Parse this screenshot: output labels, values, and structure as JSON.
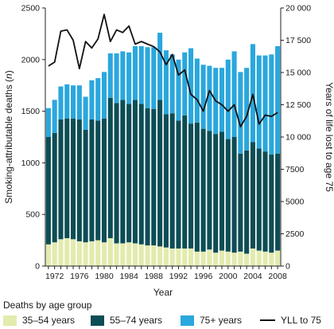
{
  "chart_data": {
    "type": "bar",
    "stacked": true,
    "xlabel": "Year",
    "ylabel": "Smoking-attributable deaths (n)",
    "ylabel_parts": [
      "Smoking-attributable deaths (",
      "n",
      ")"
    ],
    "y2label": "Years of life lost to age 75",
    "ylim": [
      0,
      2500
    ],
    "y2lim": [
      0,
      20000
    ],
    "yticks": [
      0,
      500,
      1000,
      1500,
      2000,
      2500
    ],
    "y2ticks": [
      0,
      2500,
      5000,
      7500,
      10000,
      12500,
      15000,
      17500,
      20000
    ],
    "y2ticklabels": [
      "0",
      "2500",
      "5000",
      "7500",
      "10 000",
      "12 500",
      "15 000",
      "17 500",
      "20 000"
    ],
    "xticklabels": [
      "1972",
      "1976",
      "1980",
      "1984",
      "1988",
      "1992",
      "1996",
      "2000",
      "2004",
      "2008"
    ],
    "grid": false,
    "categories": [
      1971,
      1972,
      1973,
      1974,
      1975,
      1976,
      1977,
      1978,
      1979,
      1980,
      1981,
      1982,
      1983,
      1984,
      1985,
      1986,
      1987,
      1988,
      1989,
      1990,
      1991,
      1992,
      1993,
      1994,
      1995,
      1996,
      1997,
      1998,
      1999,
      2000,
      2001,
      2002,
      2003,
      2004,
      2005,
      2006,
      2007,
      2008
    ],
    "series": [
      {
        "name": "35–54 years",
        "color": "#e3ebad",
        "values": [
          210,
          230,
          260,
          270,
          260,
          240,
          230,
          240,
          250,
          230,
          270,
          220,
          220,
          230,
          220,
          210,
          200,
          200,
          190,
          180,
          170,
          170,
          170,
          170,
          140,
          140,
          160,
          130,
          150,
          140,
          130,
          140,
          120,
          170,
          150,
          140,
          130,
          150
        ]
      },
      {
        "name": "55–74 years",
        "color": "#0d4d55",
        "values": [
          1040,
          1060,
          1160,
          1160,
          1170,
          1180,
          1090,
          1180,
          1160,
          1200,
          1360,
          1360,
          1390,
          1340,
          1390,
          1360,
          1330,
          1320,
          1420,
          1290,
          1310,
          1240,
          1290,
          1210,
          1250,
          1190,
          1150,
          1150,
          1150,
          1090,
          1120,
          950,
          1000,
          1030,
          990,
          970,
          950,
          940
        ]
      },
      {
        "name": "75+ years",
        "color": "#2aa7dd",
        "values": [
          280,
          320,
          320,
          330,
          320,
          330,
          320,
          380,
          410,
          450,
          430,
          480,
          470,
          500,
          520,
          560,
          590,
          600,
          650,
          620,
          570,
          590,
          610,
          730,
          620,
          620,
          630,
          640,
          620,
          770,
          830,
          790,
          800,
          950,
          900,
          930,
          970,
          1040
        ]
      },
      {
        "name": "YLL to 75",
        "color": "#111111",
        "axis": "right",
        "type": "line",
        "values": [
          15500,
          15800,
          18200,
          18300,
          17500,
          15300,
          17400,
          16900,
          17600,
          19500,
          17400,
          18300,
          18100,
          18600,
          17200,
          17400,
          17200,
          17000,
          16600,
          15600,
          16400,
          14800,
          15200,
          13300,
          12900,
          12000,
          13600,
          12800,
          12500,
          12000,
          12500,
          10800,
          11600,
          13300,
          11000,
          11700,
          11600,
          11900
        ]
      }
    ]
  },
  "legend": {
    "title": "Deaths by age group",
    "items": [
      {
        "label": "35–54 years"
      },
      {
        "label": "55–74 years"
      },
      {
        "label": "75+ years"
      },
      {
        "label": "YLL to 75"
      }
    ]
  }
}
